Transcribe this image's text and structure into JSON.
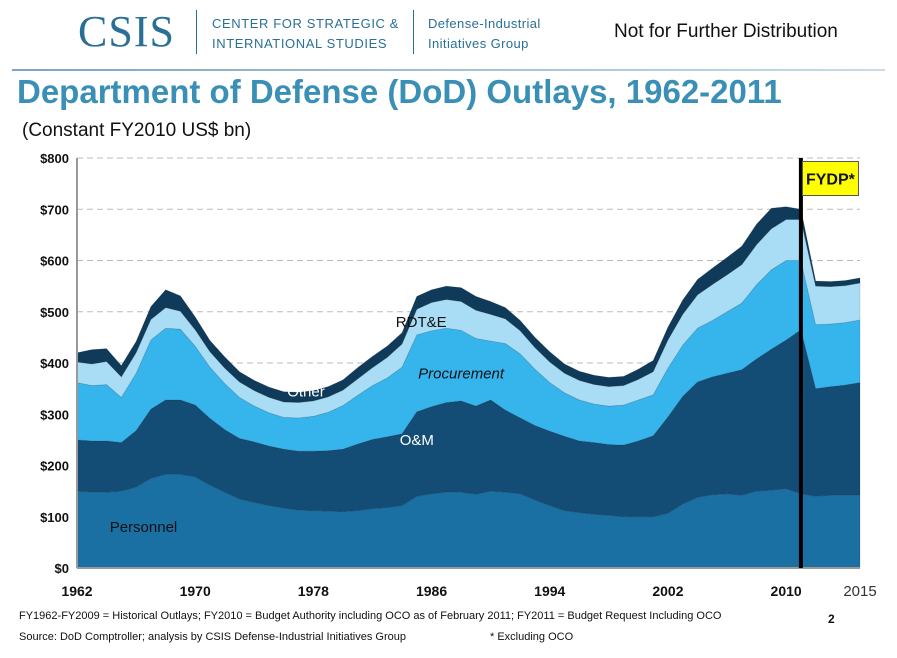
{
  "header": {
    "logo": "CSIS",
    "center_name": "CENTER FOR STRATEGIC &\nINTERNATIONAL STUDIES",
    "group_name": "Defense-Industrial\nInitiatives Group",
    "distribution": "Not for Further Distribution"
  },
  "footer": {
    "note": "FY1962-FY2009 = Historical Outlays; FY2010 = Budget Authority including OCO as of  February 2011; FY2011 = Budget Request Including OCO",
    "source": "Source: DoD Comptroller; analysis by CSIS Defense-Industrial Initiatives Group",
    "excluding": "* Excluding OCO",
    "page_number": "2"
  },
  "chart_data": {
    "type": "area",
    "stacked": true,
    "title": "Department of Defense (DoD) Outlays, 1962-2011",
    "subtitle": "(Constant FY2010 US$ bn)",
    "xlabel": "",
    "ylabel": "",
    "ylim": [
      0,
      800
    ],
    "xlim": [
      1962,
      2015
    ],
    "y_ticks": [
      "$0",
      "$100",
      "$200",
      "$300",
      "$400",
      "$500",
      "$600",
      "$700",
      "$800"
    ],
    "x_ticks": [
      "1962",
      "1970",
      "1978",
      "1986",
      "1994",
      "2002",
      "2010",
      "2015"
    ],
    "grid": true,
    "legend": "none",
    "x": [
      1962,
      1963,
      1964,
      1965,
      1966,
      1967,
      1968,
      1969,
      1970,
      1971,
      1972,
      1973,
      1974,
      1975,
      1976,
      1977,
      1978,
      1979,
      1980,
      1981,
      1982,
      1983,
      1984,
      1985,
      1986,
      1987,
      1988,
      1989,
      1990,
      1991,
      1992,
      1993,
      1994,
      1995,
      1996,
      1997,
      1998,
      1999,
      2000,
      2001,
      2002,
      2003,
      2004,
      2005,
      2006,
      2007,
      2008,
      2009,
      2010,
      2011,
      2012,
      2013,
      2014,
      2015
    ],
    "series": [
      {
        "name": "Personnel",
        "color": "#1a6fa3",
        "values": [
          150,
          148,
          148,
          150,
          158,
          175,
          183,
          183,
          178,
          162,
          148,
          135,
          128,
          122,
          117,
          113,
          112,
          111,
          110,
          112,
          116,
          118,
          122,
          140,
          145,
          148,
          148,
          144,
          150,
          148,
          145,
          133,
          122,
          112,
          108,
          105,
          103,
          100,
          100,
          100,
          107,
          125,
          138,
          143,
          145,
          142,
          150,
          152,
          155,
          145,
          140,
          142,
          142,
          142
        ]
      },
      {
        "name": "O&M",
        "color": "#134d75",
        "values": [
          100,
          100,
          100,
          95,
          110,
          135,
          145,
          145,
          140,
          130,
          122,
          118,
          118,
          116,
          115,
          115,
          116,
          118,
          122,
          130,
          135,
          138,
          140,
          165,
          170,
          175,
          178,
          172,
          178,
          160,
          148,
          145,
          145,
          145,
          140,
          140,
          138,
          140,
          148,
          158,
          188,
          210,
          225,
          230,
          235,
          245,
          258,
          275,
          290,
          320,
          210,
          212,
          215,
          220
        ]
      },
      {
        "name": "Procurement",
        "color": "#36b4ec",
        "values": [
          112,
          108,
          110,
          88,
          112,
          135,
          140,
          138,
          115,
          100,
          90,
          80,
          70,
          65,
          62,
          65,
          68,
          75,
          85,
          95,
          105,
          115,
          130,
          150,
          148,
          145,
          138,
          132,
          115,
          130,
          125,
          110,
          95,
          85,
          80,
          75,
          75,
          78,
          80,
          80,
          95,
          100,
          105,
          110,
          120,
          130,
          145,
          155,
          155,
          135,
          125,
          122,
          122,
          122
        ]
      },
      {
        "name": "RDT&E",
        "color": "#a9ddf5",
        "values": [
          40,
          42,
          45,
          40,
          40,
          40,
          40,
          35,
          32,
          30,
          30,
          30,
          30,
          30,
          30,
          30,
          30,
          30,
          30,
          32,
          35,
          40,
          45,
          50,
          55,
          56,
          56,
          55,
          52,
          48,
          45,
          42,
          40,
          38,
          38,
          38,
          38,
          38,
          40,
          45,
          55,
          60,
          65,
          70,
          72,
          75,
          78,
          80,
          80,
          80,
          75,
          73,
          72,
          72
        ]
      },
      {
        "name": "Other",
        "color": "#0f3a5a",
        "values": [
          18,
          28,
          25,
          22,
          22,
          25,
          35,
          30,
          25,
          22,
          22,
          20,
          20,
          20,
          20,
          20,
          20,
          20,
          20,
          22,
          22,
          22,
          22,
          25,
          25,
          26,
          27,
          27,
          25,
          22,
          20,
          20,
          20,
          18,
          18,
          18,
          18,
          18,
          20,
          22,
          25,
          28,
          30,
          32,
          34,
          36,
          40,
          40,
          25,
          20,
          10,
          10,
          10,
          10
        ]
      }
    ],
    "series_labels": [
      {
        "text": "Personnel",
        "x": 1966.5,
        "y": 70,
        "style": "normal",
        "color": "#111111"
      },
      {
        "text": "O&M",
        "x": 1985,
        "y": 240,
        "style": "normal",
        "color": "#ffffff"
      },
      {
        "text": "Procurement",
        "x": 1988,
        "y": 370,
        "style": "italic",
        "color": "#111111"
      },
      {
        "text": "RDT&E",
        "x": 1985.3,
        "y": 470,
        "style": "normal",
        "color": "#111111"
      },
      {
        "text": "Other",
        "x": 1977.5,
        "y": 335,
        "style": "normal",
        "color": "#ffffff"
      }
    ],
    "marker": {
      "x": 2011,
      "label": "FYDP*",
      "label_y": 760,
      "label_x": 2013
    }
  }
}
